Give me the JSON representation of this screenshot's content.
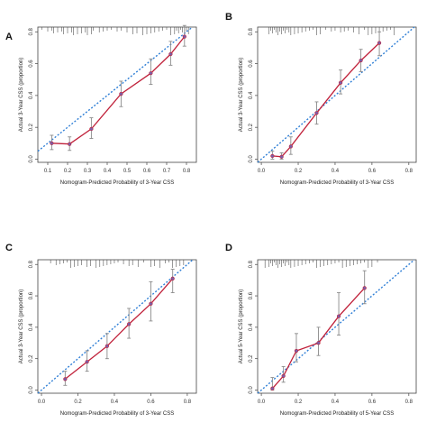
{
  "chart_data": [
    {
      "panel": "A",
      "type": "line",
      "xlabel": "Nomogram-Predicted Probability of 3-Year CSS",
      "ylabel": "Actual 3-Year CSS (proportion)",
      "xlim": [
        0.05,
        0.85
      ],
      "ylim": [
        -0.02,
        0.83
      ],
      "xticks": [
        0.1,
        0.2,
        0.3,
        0.4,
        0.5,
        0.6,
        0.7,
        0.8
      ],
      "yticks": [
        0.0,
        0.2,
        0.4,
        0.6,
        0.8
      ],
      "x": [
        0.12,
        0.21,
        0.32,
        0.47,
        0.62,
        0.72,
        0.79
      ],
      "y": [
        0.1,
        0.095,
        0.19,
        0.41,
        0.54,
        0.66,
        0.77
      ],
      "err_low": [
        0.06,
        0.055,
        0.13,
        0.33,
        0.47,
        0.59,
        0.71
      ],
      "err_high": [
        0.15,
        0.14,
        0.26,
        0.49,
        0.63,
        0.74,
        0.84
      ],
      "rug": [
        0.07,
        0.1,
        0.12,
        0.13,
        0.15,
        0.17,
        0.18,
        0.2,
        0.22,
        0.23,
        0.25,
        0.27,
        0.29,
        0.3,
        0.32,
        0.33,
        0.36,
        0.38,
        0.4,
        0.42,
        0.45,
        0.47,
        0.5,
        0.53,
        0.55,
        0.58,
        0.6,
        0.62,
        0.64,
        0.66,
        0.68,
        0.7,
        0.72,
        0.74,
        0.75,
        0.76,
        0.77,
        0.78,
        0.79,
        0.8,
        0.81
      ]
    },
    {
      "panel": "B",
      "type": "line",
      "xlabel": "Nomogram-Predicted Probability of 3-Year CSS",
      "ylabel": "Actual 3-Year CSS (proportion)",
      "xlim": [
        -0.02,
        0.84
      ],
      "ylim": [
        -0.02,
        0.83
      ],
      "xticks": [
        0.0,
        0.2,
        0.4,
        0.6,
        0.8
      ],
      "yticks": [
        0.0,
        0.2,
        0.4,
        0.6,
        0.8
      ],
      "x": [
        0.06,
        0.11,
        0.16,
        0.3,
        0.43,
        0.54,
        0.64
      ],
      "y": [
        0.02,
        0.015,
        0.08,
        0.29,
        0.48,
        0.62,
        0.73
      ],
      "err_low": [
        0.0,
        0.0,
        0.03,
        0.22,
        0.41,
        0.55,
        0.65
      ],
      "err_high": [
        0.05,
        0.04,
        0.14,
        0.36,
        0.56,
        0.69,
        0.8
      ],
      "rug": [
        0.04,
        0.05,
        0.06,
        0.07,
        0.08,
        0.09,
        0.1,
        0.11,
        0.12,
        0.13,
        0.14,
        0.15,
        0.16,
        0.18,
        0.2,
        0.22,
        0.24,
        0.26,
        0.28,
        0.3,
        0.32,
        0.35,
        0.38,
        0.4,
        0.43,
        0.45,
        0.47,
        0.5,
        0.53,
        0.56,
        0.58,
        0.6,
        0.62,
        0.64,
        0.66,
        0.68,
        0.7,
        0.72
      ]
    },
    {
      "panel": "C",
      "type": "line",
      "xlabel": "Nomogram-Predicted Probability of 3-Year CSS",
      "ylabel": "Actual 3-Year CSS (proportion)",
      "xlim": [
        -0.02,
        0.85
      ],
      "ylim": [
        -0.02,
        0.83
      ],
      "xticks": [
        0.0,
        0.2,
        0.4,
        0.6,
        0.8
      ],
      "yticks": [
        0.0,
        0.2,
        0.4,
        0.6,
        0.8
      ],
      "x": [
        0.13,
        0.25,
        0.36,
        0.48,
        0.6,
        0.72
      ],
      "y": [
        0.07,
        0.18,
        0.28,
        0.42,
        0.55,
        0.71
      ],
      "err_low": [
        0.03,
        0.12,
        0.2,
        0.33,
        0.44,
        0.62
      ],
      "err_high": [
        0.12,
        0.25,
        0.36,
        0.52,
        0.69,
        0.77
      ],
      "rug": [
        0.05,
        0.08,
        0.1,
        0.12,
        0.14,
        0.16,
        0.18,
        0.2,
        0.22,
        0.25,
        0.27,
        0.3,
        0.32,
        0.34,
        0.36,
        0.38,
        0.4,
        0.42,
        0.45,
        0.48,
        0.5,
        0.53,
        0.56,
        0.6,
        0.62,
        0.65,
        0.68,
        0.7,
        0.72,
        0.74,
        0.76,
        0.78
      ]
    },
    {
      "panel": "D",
      "type": "line",
      "xlabel": "Nomogram-Predicted Probability of 5-Year CSS",
      "ylabel": "Actual 5-Year CSS (proportion)",
      "xlim": [
        -0.02,
        0.84
      ],
      "ylim": [
        -0.02,
        0.83
      ],
      "xticks": [
        0.0,
        0.2,
        0.4,
        0.6,
        0.8
      ],
      "yticks": [
        0.0,
        0.2,
        0.4,
        0.6,
        0.8
      ],
      "x": [
        0.06,
        0.12,
        0.19,
        0.31,
        0.42,
        0.56
      ],
      "y": [
        0.01,
        0.09,
        0.25,
        0.3,
        0.47,
        0.65
      ],
      "err_low": [
        0.0,
        0.05,
        0.18,
        0.22,
        0.35,
        0.55
      ],
      "err_high": [
        0.08,
        0.15,
        0.36,
        0.4,
        0.62,
        0.76
      ],
      "rug": [
        0.02,
        0.04,
        0.05,
        0.06,
        0.07,
        0.08,
        0.09,
        0.1,
        0.11,
        0.12,
        0.13,
        0.14,
        0.15,
        0.16,
        0.18,
        0.2,
        0.22,
        0.24,
        0.26,
        0.28,
        0.3,
        0.32,
        0.34,
        0.36,
        0.38,
        0.4,
        0.42,
        0.44,
        0.46,
        0.48,
        0.5,
        0.52,
        0.54,
        0.56,
        0.58,
        0.6,
        0.63
      ]
    }
  ],
  "colors": {
    "calibration_line": "#c0213a",
    "marker": "#7b5ea7",
    "ideal_line": "#2f7fd6",
    "error_bar": "#8a8a8a",
    "axis": "#444444"
  }
}
